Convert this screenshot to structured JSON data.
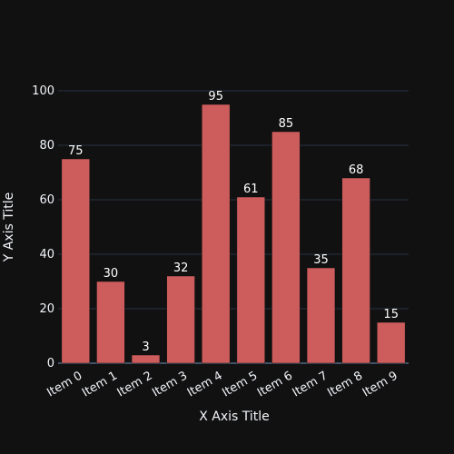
{
  "chart_data": {
    "type": "bar",
    "categories": [
      "Item 0",
      "Item 1",
      "Item 2",
      "Item 3",
      "Item 4",
      "Item 5",
      "Item 6",
      "Item 7",
      "Item 8",
      "Item 9"
    ],
    "values": [
      75,
      30,
      3,
      32,
      95,
      61,
      85,
      35,
      68,
      15
    ],
    "xlabel": "X Axis Title",
    "ylabel": "Y Axis Title",
    "ylim": [
      0,
      100
    ],
    "yticks": [
      0,
      20,
      40,
      60,
      80,
      100
    ],
    "grid": true,
    "data_labels": true,
    "bar_color": "#cd5c5c",
    "background_color": "#111111",
    "grid_color": "#283442"
  }
}
